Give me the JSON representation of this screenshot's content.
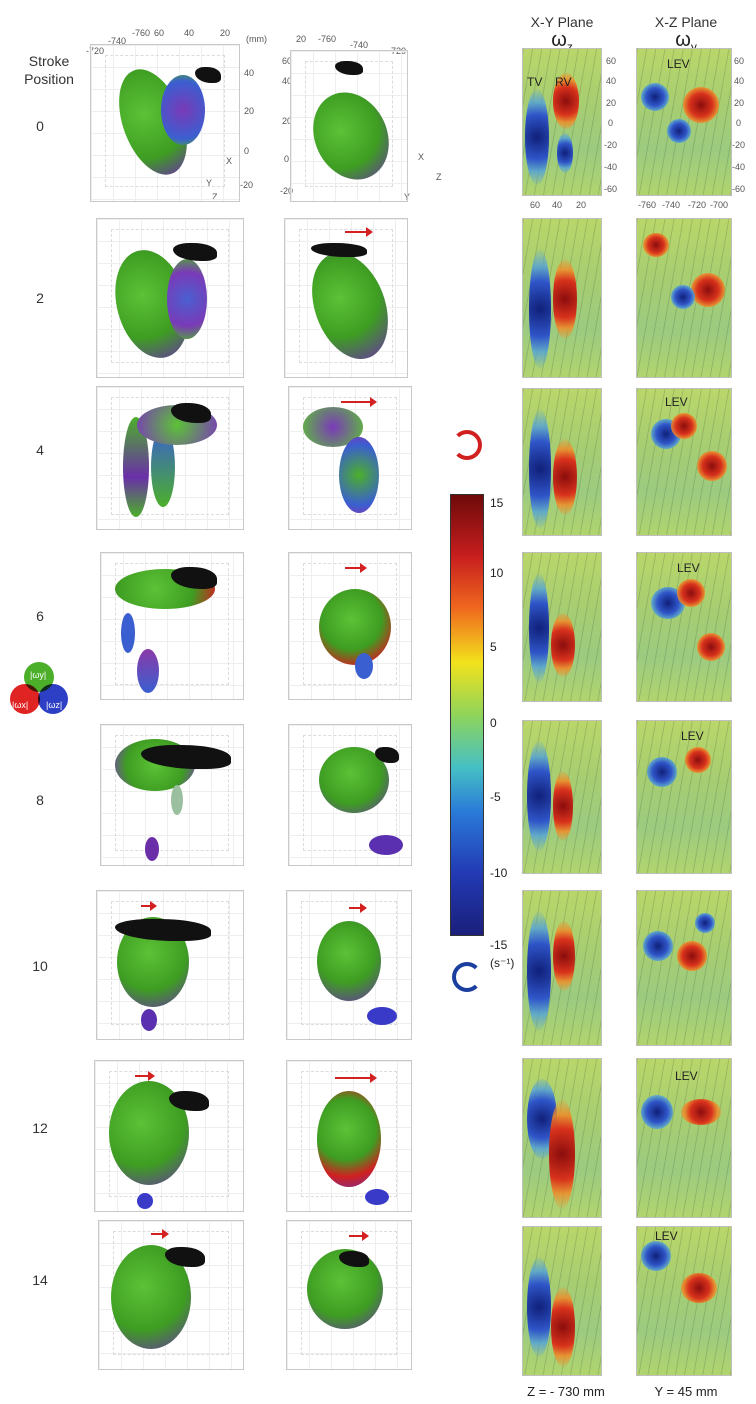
{
  "stroke_header": [
    "Stroke",
    "Position"
  ],
  "strokes": [
    "0",
    "2",
    "4",
    "6",
    "8",
    "10",
    "12",
    "14"
  ],
  "xy_plane": {
    "title": "X-Y Plane",
    "symbol": "ω",
    "sub": "z",
    "footer": "Z = - 730 mm"
  },
  "xz_plane": {
    "title": "X-Z Plane",
    "symbol": "ω",
    "sub": "y",
    "footer": "Y = 45 mm"
  },
  "vortex_labels": {
    "tv": "TV",
    "rv": "RV",
    "lev": "LEV"
  },
  "colorbar": {
    "ticks": [
      "15",
      "10",
      "5",
      "0",
      "-5",
      "-10",
      "-15"
    ],
    "unit": "(s⁻¹)",
    "range": [
      -15,
      15
    ]
  },
  "legend_venn": {
    "top": "|ωy|",
    "left": "|ωx|",
    "right": "|ωz|"
  },
  "axes_col1": {
    "top_ticks": [
      "-720",
      "-740",
      "-760",
      "60",
      "40",
      "20"
    ],
    "unit": "(mm)",
    "right_ticks": [
      "40",
      "20",
      "0",
      "-20"
    ],
    "triad": [
      "X",
      "Y",
      "Z"
    ]
  },
  "axes_col2": {
    "top_ticks": [
      "-760",
      "-740",
      "-720",
      "20"
    ],
    "left_ticks": [
      "60",
      "40",
      "20",
      "0",
      "-20"
    ],
    "triad": [
      "X",
      "Z",
      "Y"
    ]
  },
  "axes_xy": {
    "right_ticks": [
      "60",
      "40",
      "20",
      "0",
      "-20",
      "-40",
      "-60"
    ],
    "bottom_ticks": [
      "60",
      "40",
      "20"
    ]
  },
  "axes_xz": {
    "right_ticks": [
      "60",
      "40",
      "20",
      "0",
      "-20",
      "-40",
      "-60"
    ],
    "bottom_ticks": [
      "-760",
      "-740",
      "-720",
      "-700"
    ]
  },
  "colors": {
    "red": "#d32020",
    "blue": "#1b3f9e",
    "green": "#4caf2a"
  }
}
